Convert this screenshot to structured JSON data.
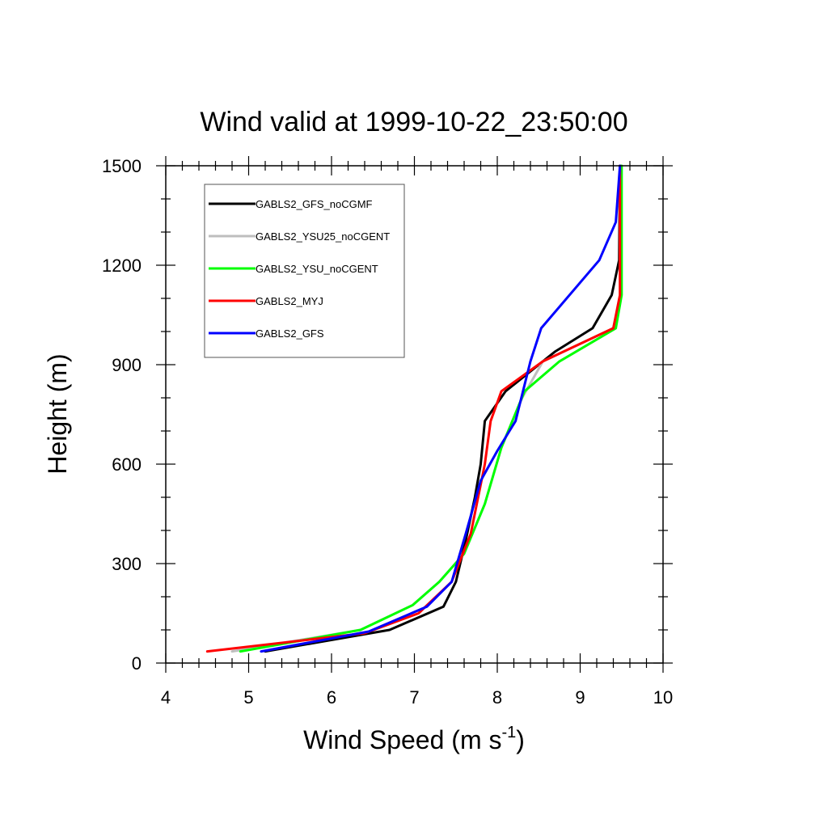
{
  "chart_data": {
    "type": "line",
    "title": "Wind valid at 1999-10-22_23:50:00",
    "xlabel": {
      "main": "Wind Speed (m s",
      "sup": "-1",
      "close": ")"
    },
    "ylabel": "Height (m)",
    "xlim": [
      4,
      10
    ],
    "ylim": [
      0,
      1500
    ],
    "x_ticks": [
      4,
      5,
      6,
      7,
      8,
      9,
      10
    ],
    "y_ticks": [
      0,
      300,
      600,
      900,
      1200,
      1500
    ],
    "x_tick_labels": [
      "4",
      "5",
      "6",
      "7",
      "8",
      "9",
      "10"
    ],
    "y_tick_labels": [
      "0",
      "300",
      "600",
      "900",
      "1200",
      "1500"
    ],
    "x_minor_step": 0.2,
    "y_minor_step": 100,
    "grid": false,
    "legend_position": "top-left",
    "series": [
      {
        "name": "GABLS2_GFS_noCGMF",
        "color": "#000000",
        "points": [
          [
            5.2,
            35
          ],
          [
            6.7,
            100
          ],
          [
            7.35,
            170
          ],
          [
            7.5,
            245
          ],
          [
            7.62,
            370
          ],
          [
            7.73,
            500
          ],
          [
            7.8,
            600
          ],
          [
            7.85,
            730
          ],
          [
            8.1,
            820
          ],
          [
            8.7,
            940
          ],
          [
            9.15,
            1010
          ],
          [
            9.38,
            1110
          ],
          [
            9.47,
            1215
          ],
          [
            9.48,
            1500
          ]
        ]
      },
      {
        "name": "GABLS2_YSU25_noCGENT",
        "color": "#bebebe",
        "points": [
          [
            4.8,
            35
          ],
          [
            6.35,
            100
          ],
          [
            6.98,
            175
          ],
          [
            7.3,
            245
          ],
          [
            7.6,
            330
          ],
          [
            7.85,
            480
          ],
          [
            8.05,
            650
          ],
          [
            8.3,
            800
          ],
          [
            8.55,
            910
          ],
          [
            9.4,
            1010
          ],
          [
            9.48,
            1110
          ],
          [
            9.48,
            1500
          ]
        ]
      },
      {
        "name": "GABLS2_YSU_noCGENT",
        "color": "#00ff00",
        "points": [
          [
            4.9,
            35
          ],
          [
            6.35,
            100
          ],
          [
            6.98,
            175
          ],
          [
            7.3,
            245
          ],
          [
            7.6,
            330
          ],
          [
            7.85,
            480
          ],
          [
            8.05,
            650
          ],
          [
            8.33,
            820
          ],
          [
            8.75,
            910
          ],
          [
            9.43,
            1010
          ],
          [
            9.5,
            1110
          ],
          [
            9.5,
            1500
          ]
        ]
      },
      {
        "name": "GABLS2_MYJ",
        "color": "#ff0000",
        "points": [
          [
            4.5,
            35
          ],
          [
            6.4,
            90
          ],
          [
            7.05,
            150
          ],
          [
            7.45,
            245
          ],
          [
            7.68,
            390
          ],
          [
            7.85,
            600
          ],
          [
            7.92,
            730
          ],
          [
            8.05,
            820
          ],
          [
            8.55,
            910
          ],
          [
            9.4,
            1010
          ],
          [
            9.48,
            1110
          ],
          [
            9.48,
            1500
          ]
        ]
      },
      {
        "name": "GABLS2_GFS",
        "color": "#0000ff",
        "points": [
          [
            5.15,
            35
          ],
          [
            6.45,
            95
          ],
          [
            7.15,
            170
          ],
          [
            7.45,
            245
          ],
          [
            7.62,
            390
          ],
          [
            7.8,
            550
          ],
          [
            8.0,
            640
          ],
          [
            8.22,
            730
          ],
          [
            8.4,
            910
          ],
          [
            8.53,
            1010
          ],
          [
            9.23,
            1215
          ],
          [
            9.43,
            1330
          ],
          [
            9.48,
            1500
          ]
        ]
      }
    ]
  }
}
